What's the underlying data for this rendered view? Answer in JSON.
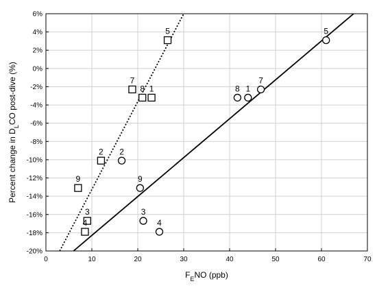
{
  "chart_data": {
    "type": "scatter",
    "title": "",
    "xlabel": {
      "main": "F",
      "sub": "E",
      "rest": "NO (ppb)"
    },
    "ylabel": {
      "main": "Percent change in D",
      "sub": "L",
      "rest": "CO post-dive (%)"
    },
    "xlim": [
      0,
      70
    ],
    "ylim": [
      -20,
      6
    ],
    "x_ticks": [
      0,
      10,
      20,
      30,
      40,
      50,
      60,
      70
    ],
    "y_ticks": [
      -20,
      -18,
      -16,
      -14,
      -12,
      -10,
      -8,
      -6,
      -4,
      -2,
      0,
      2,
      4,
      6
    ],
    "y_tick_labels": [
      "-20%",
      "-18%",
      "-16%",
      "-14%",
      "-12%",
      "-10%",
      "-8%",
      "-6%",
      "-4%",
      "-2%",
      "0%",
      "2%",
      "4%",
      "6%"
    ],
    "x_tick_labels": [
      "0",
      "10",
      "20",
      "30",
      "40",
      "50",
      "60",
      "70"
    ],
    "grid": true,
    "series": [
      {
        "marker": "square",
        "points": [
          {
            "label": "5",
            "x": 26.5,
            "y": 3.1
          },
          {
            "label": "7",
            "x": 18.8,
            "y": -2.3
          },
          {
            "label": "8",
            "x": 21.0,
            "y": -3.2
          },
          {
            "label": "1",
            "x": 23.0,
            "y": -3.2
          },
          {
            "label": "2",
            "x": 12.0,
            "y": -10.1
          },
          {
            "label": "9",
            "x": 7.0,
            "y": -13.1
          },
          {
            "label": "3",
            "x": 9.0,
            "y": -16.7
          },
          {
            "label": "4",
            "x": 8.5,
            "y": -17.9
          }
        ],
        "fit_line": {
          "style": "dotted",
          "x1": 3.0,
          "y1": -20.0,
          "x2": 30.0,
          "y2": 6.0
        }
      },
      {
        "marker": "circle",
        "points": [
          {
            "label": "5",
            "x": 61.0,
            "y": 3.1
          },
          {
            "label": "7",
            "x": 46.8,
            "y": -2.3
          },
          {
            "label": "8",
            "x": 41.7,
            "y": -3.2
          },
          {
            "label": "1",
            "x": 44.0,
            "y": -3.2
          },
          {
            "label": "2",
            "x": 16.5,
            "y": -10.1
          },
          {
            "label": "9",
            "x": 20.5,
            "y": -13.1
          },
          {
            "label": "3",
            "x": 21.2,
            "y": -16.7
          },
          {
            "label": "4",
            "x": 24.7,
            "y": -17.9
          }
        ],
        "fit_line": {
          "style": "solid",
          "x1": 6.0,
          "y1": -20.0,
          "x2": 67.0,
          "y2": 6.0
        }
      }
    ]
  }
}
